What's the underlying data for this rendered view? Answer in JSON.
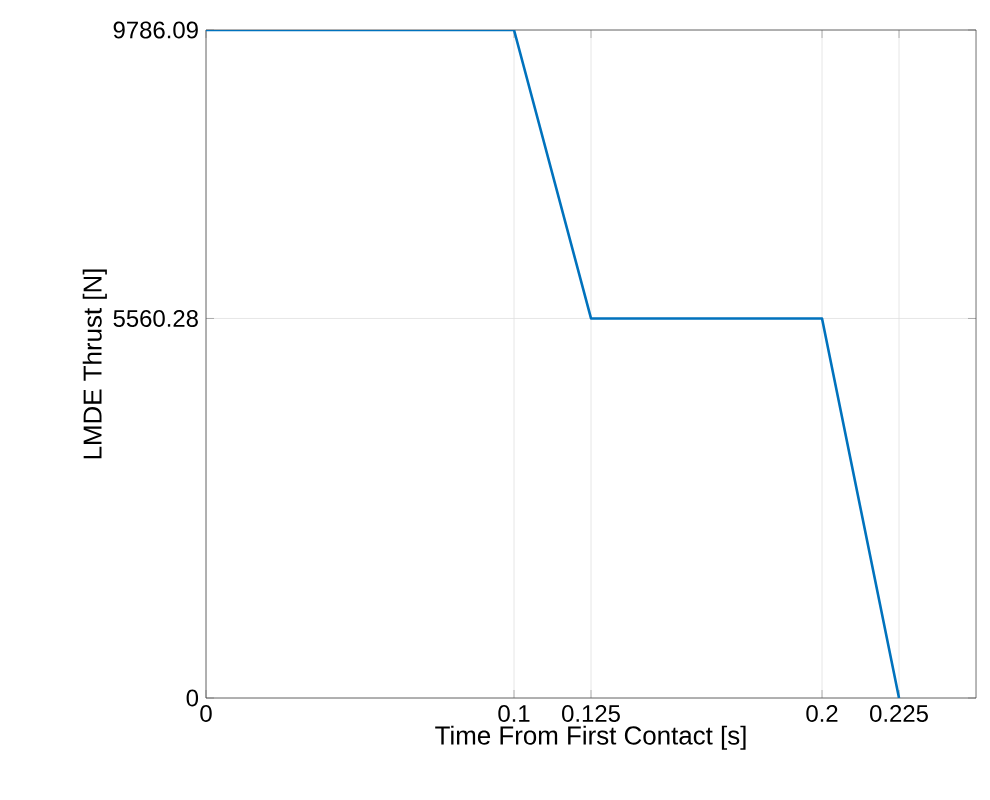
{
  "chart_data": {
    "type": "line",
    "xlabel": "Time From First Contact [s]",
    "ylabel": "LMDE Thrust [N]",
    "x": [
      0,
      0.1,
      0.125,
      0.2,
      0.225
    ],
    "series": [
      {
        "color": "#0072bd",
        "values": [
          9786.09,
          9786.09,
          5560.28,
          5560.28,
          0
        ]
      }
    ],
    "xlim": [
      0,
      0.25
    ],
    "ylim": [
      0,
      9786.09
    ],
    "xticks": [
      0,
      0.1,
      0.125,
      0.2,
      0.225
    ],
    "yticks": [
      0,
      5560.28,
      9786.09
    ],
    "grid": true,
    "marker": "none",
    "line_style": "solid"
  }
}
